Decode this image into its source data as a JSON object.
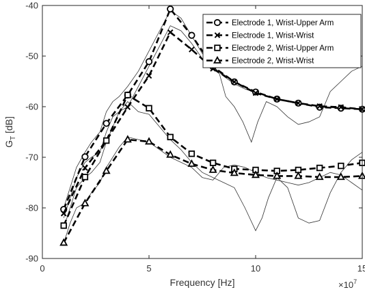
{
  "chart_data": {
    "type": "line",
    "xlabel": "Frequency [Hz]",
    "x_multiplier_label": "×10",
    "x_multiplier_exponent": "7",
    "ylabel_main": "G",
    "ylabel_sub": "T",
    "ylabel_unit": " [dB]",
    "xlim": [
      0,
      15
    ],
    "ylim": [
      -90,
      -40
    ],
    "xticks": [
      0,
      5,
      10,
      15
    ],
    "xtick_labels": [
      "0",
      "5",
      "10",
      "15"
    ],
    "yticks": [
      -90,
      -80,
      -70,
      -60,
      -50,
      -40
    ],
    "ytick_labels": [
      "-90",
      "-80",
      "-70",
      "-60",
      "-50",
      "-40"
    ],
    "grid": false,
    "legend_position": "top-right",
    "series": [
      {
        "name": "Electrode 1, Wrist-Upper Arm",
        "marker": "circle",
        "x": [
          1,
          2,
          3,
          4,
          5,
          6,
          7,
          8,
          9,
          10,
          11,
          12,
          13,
          14,
          15
        ],
        "y": [
          -80.3,
          -69.9,
          -63.3,
          -57.7,
          -51.1,
          -40.7,
          -45.9,
          -52.1,
          -55.1,
          -57.1,
          -58.5,
          -59.3,
          -60.1,
          -60.3,
          -60.5
        ]
      },
      {
        "name": "Electrode 1, Wrist-Wrist",
        "marker": "x",
        "x": [
          1,
          2,
          3,
          4,
          5,
          6,
          7,
          8,
          9,
          10,
          11,
          12,
          13,
          14,
          15
        ],
        "y": [
          -81.1,
          -72.1,
          -66.7,
          -60.1,
          -53.9,
          -45.3,
          -48.7,
          -52.5,
          -55.1,
          -57.3,
          -58.5,
          -59.3,
          -59.9,
          -60.1,
          -60.5
        ]
      },
      {
        "name": "Electrode 2, Wrist-Upper Arm",
        "marker": "square",
        "x": [
          1,
          2,
          3,
          4,
          5,
          6,
          7,
          8,
          9,
          10,
          11,
          12,
          13,
          14,
          15
        ],
        "y": [
          -83.5,
          -73.9,
          -66.7,
          -57.7,
          -60.3,
          -66.0,
          -69.3,
          -71.1,
          -72.3,
          -72.5,
          -72.7,
          -72.5,
          -72.1,
          -71.7,
          -71.1
        ]
      },
      {
        "name": "Electrode 2, Wrist-Wrist",
        "marker": "triangle",
        "x": [
          1,
          2,
          3,
          4,
          5,
          6,
          7,
          8,
          9,
          10,
          11,
          12,
          13,
          14,
          15
        ],
        "y": [
          -86.9,
          -79.1,
          -72.7,
          -66.5,
          -66.9,
          -69.5,
          -71.3,
          -72.5,
          -73.1,
          -73.5,
          -73.7,
          -73.7,
          -73.9,
          -73.9,
          -73.7
        ]
      }
    ],
    "reference_curves": [
      {
        "x": [
          1,
          1.3,
          1.6,
          2,
          2.3,
          2.7,
          3,
          3.3,
          3.6,
          4,
          4.5,
          5,
          5.5,
          6,
          6.5,
          7,
          7.5,
          8,
          8.5,
          9,
          9.5,
          10,
          10.5,
          11,
          11.5,
          12,
          12.5,
          13,
          13.5,
          14,
          14.5,
          15
        ],
        "y": [
          -80,
          -76,
          -72,
          -69,
          -67,
          -65,
          -61,
          -59,
          -58,
          -56,
          -53,
          -49,
          -45,
          -41,
          -42.5,
          -46,
          -49.5,
          -52,
          -54,
          -55.5,
          -56.5,
          -57.2,
          -57.8,
          -58.5,
          -58.8,
          -59.3,
          -59.6,
          -60.1,
          -60.2,
          -60.3,
          -60.4,
          -60.5
        ]
      },
      {
        "x": [
          1,
          1.3,
          1.6,
          2,
          2.3,
          2.7,
          3,
          3.3,
          3.6,
          4,
          4.5,
          5,
          5.5,
          6,
          6.5,
          7,
          7.5,
          8,
          8.3,
          8.6,
          9,
          9.4,
          9.8,
          10.1,
          10.5,
          11,
          11.5,
          12,
          12.5,
          13,
          13.5,
          14,
          14.5,
          15
        ],
        "y": [
          -82,
          -78,
          -74,
          -71,
          -70,
          -69,
          -65,
          -62,
          -61,
          -60,
          -56,
          -52,
          -48,
          -44,
          -45,
          -47.5,
          -50.5,
          -52.5,
          -53.5,
          -58,
          -60,
          -63,
          -67,
          -63,
          -59,
          -60,
          -62,
          -63.5,
          -63,
          -62,
          -57,
          -55,
          -53,
          -52
        ]
      },
      {
        "x": [
          1,
          1.3,
          1.6,
          2,
          2.3,
          2.7,
          3,
          3.3,
          3.6,
          4,
          4.5,
          5,
          5.5,
          6,
          6.5,
          7,
          7.5,
          8,
          8.5,
          9,
          9.5,
          10,
          10.3,
          10.6,
          11,
          11.5,
          12,
          12.5,
          13,
          13.5,
          14,
          14.5,
          15
        ],
        "y": [
          -84,
          -80,
          -76,
          -74,
          -73,
          -71,
          -67,
          -64,
          -61,
          -59,
          -61,
          -61.5,
          -64,
          -66.5,
          -68.5,
          -71,
          -73,
          -74,
          -75,
          -76,
          -80,
          -84.5,
          -82,
          -78,
          -74,
          -76,
          -82,
          -83,
          -82.5,
          -77,
          -73,
          -70.5,
          -69
        ]
      },
      {
        "x": [
          1,
          1.3,
          1.6,
          2,
          2.3,
          2.7,
          3,
          3.3,
          3.6,
          4,
          4.5,
          5,
          5.5,
          6,
          6.5,
          7,
          7.5,
          8,
          8.5,
          9,
          9.5,
          10,
          10.5,
          11,
          11.5,
          12,
          12.5,
          13,
          13.5,
          14,
          14.5,
          15
        ],
        "y": [
          -87,
          -83,
          -80,
          -79,
          -77,
          -75,
          -72,
          -70,
          -68,
          -66,
          -66.5,
          -67,
          -68.5,
          -70,
          -71,
          -72,
          -74,
          -74.5,
          -72,
          -71.5,
          -72,
          -73,
          -74,
          -74.5,
          -75,
          -75.5,
          -75,
          -74,
          -73,
          -73.5,
          -75,
          -76.5
        ]
      }
    ]
  }
}
